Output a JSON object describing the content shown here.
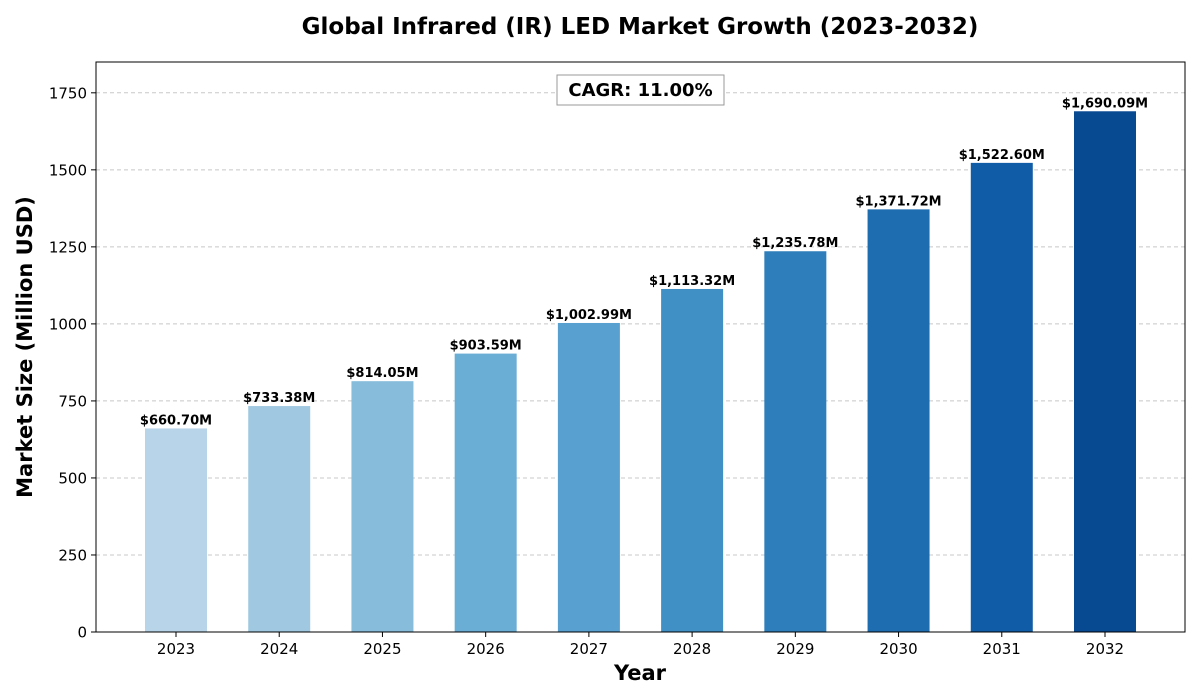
{
  "chart_data": {
    "type": "bar",
    "title": "Global Infrared (IR) LED Market Growth (2023-2032)",
    "xlabel": "Year",
    "ylabel": "Market Size (Million USD)",
    "categories": [
      "2023",
      "2024",
      "2025",
      "2026",
      "2027",
      "2028",
      "2029",
      "2030",
      "2031",
      "2032"
    ],
    "values": [
      660.7,
      733.38,
      814.05,
      903.59,
      1002.99,
      1113.32,
      1235.78,
      1371.72,
      1522.6,
      1690.09
    ],
    "data_labels": [
      "$660.70M",
      "$733.38M",
      "$814.05M",
      "$903.59M",
      "$1,002.99M",
      "$1,113.32M",
      "$1,235.78M",
      "$1,371.72M",
      "$1,522.60M",
      "$1,690.09M"
    ],
    "bar_colors": [
      "#b8d4e9",
      "#a0c9e1",
      "#87bcdb",
      "#6aadd5",
      "#57a0cf",
      "#4190c5",
      "#2e7ebc",
      "#1f6db1",
      "#115ca6",
      "#084a92"
    ],
    "yticks": [
      0,
      250,
      500,
      750,
      1000,
      1250,
      1500,
      1750
    ],
    "ylim": [
      0,
      1850
    ],
    "grid": "y",
    "annotation": "CAGR: 11.00%"
  }
}
